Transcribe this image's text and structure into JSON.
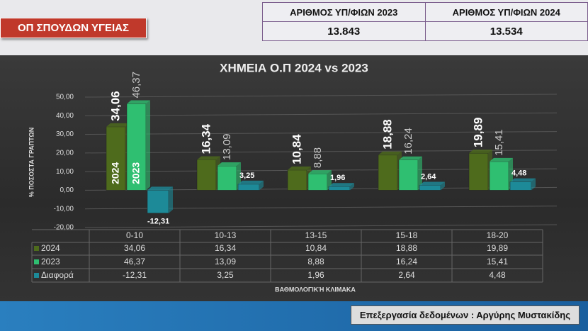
{
  "header": {
    "badge": "ΟΠ ΣΠΟΥΔΩΝ ΥΓΕΙΑΣ",
    "stats": {
      "columns": [
        "ΑΡΙΘΜΟΣ ΥΠ/ΦΙΩΝ 2023",
        "ΑΡΙΘΜΟΣ ΥΠ/ΦΙΩΝ 2024"
      ],
      "values": [
        "13.843",
        "13.534"
      ]
    }
  },
  "chart_data": {
    "type": "bar",
    "title": "ΧΗΜΕΙΑ Ο.Π 2024 vs 2023",
    "y_label": "% ΠΟΣΟΣΤΑ ΓΡΑΠΤΩΝ",
    "x_label": "ΒΑΘΜΟΛΟΓΙΚΉ ΚΛΙΜΑΚΑ",
    "categories": [
      "0-10",
      "10-13",
      "13-15",
      "15-18",
      "18-20"
    ],
    "series": [
      {
        "name": "2024",
        "color": "#4e6b1c",
        "values": [
          34.06,
          16.34,
          10.84,
          18.88,
          19.89
        ],
        "value_labels": [
          "34,06",
          "16,34",
          "10,84",
          "18,88",
          "19,89"
        ]
      },
      {
        "name": "2023",
        "color": "#2fbf71",
        "values": [
          46.37,
          13.09,
          8.88,
          16.24,
          15.41
        ],
        "value_labels": [
          "46,37",
          "13,09",
          "8,88",
          "16,24",
          "15,41"
        ]
      },
      {
        "name": "Διαφορά",
        "color": "#1d8a98",
        "values": [
          -12.31,
          3.25,
          1.96,
          2.64,
          4.48
        ],
        "value_labels": [
          "-12,31",
          "3,25",
          "1,96",
          "2,64",
          "4,48"
        ]
      }
    ],
    "ylim": [
      -20,
      50
    ],
    "yticks": [
      {
        "value": -20,
        "label": "-20,00"
      },
      {
        "value": -10,
        "label": "-10,00"
      },
      {
        "value": 0,
        "label": "0,00"
      },
      {
        "value": 10,
        "label": "10,00"
      },
      {
        "value": 20,
        "label": "20,00"
      },
      {
        "value": 30,
        "label": "30,00"
      },
      {
        "value": 40,
        "label": "40,00"
      },
      {
        "value": 50,
        "label": "50,00"
      }
    ],
    "grid": true
  },
  "footer": {
    "credit": "Επεξεργασία δεδομένων : Αργύρης Μυστακίδης"
  }
}
